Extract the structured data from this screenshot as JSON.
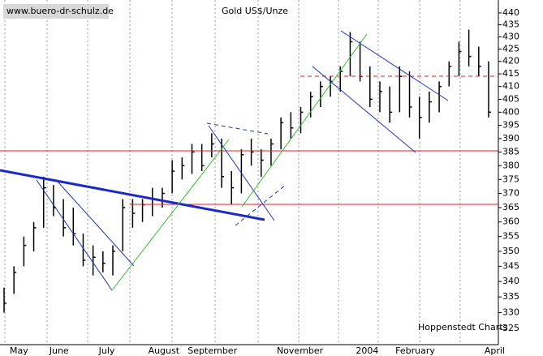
{
  "chart_data": {
    "type": "hlc",
    "title": "Gold US$/Unze",
    "source": "www.buero-dr-schulz.de",
    "credit": "Hoppenstedt Charts",
    "log": true,
    "ylim": [
      320,
      445.5
    ],
    "yticks": [
      325,
      330,
      335,
      340,
      345,
      350,
      355,
      360,
      365,
      370,
      375,
      380,
      385,
      390,
      395,
      400,
      405,
      410,
      415,
      420,
      425,
      430,
      435,
      440
    ],
    "categories": [
      "May",
      null,
      null,
      null,
      "June",
      null,
      null,
      null,
      null,
      "July",
      null,
      null,
      null,
      null,
      "August",
      null,
      null,
      null,
      "September",
      null,
      null,
      null,
      null,
      null,
      null,
      null,
      null,
      "November",
      null,
      null,
      null,
      null,
      null,
      null,
      null,
      "2004",
      null,
      null,
      null,
      "February",
      null,
      null,
      null,
      null,
      null,
      null,
      null,
      null,
      "April",
      null
    ],
    "high": [
      338,
      345,
      355,
      360,
      376,
      373,
      368,
      365,
      356,
      352,
      350,
      352,
      368,
      368,
      368,
      372,
      372,
      382,
      383,
      388,
      388,
      392,
      390,
      378,
      386,
      390,
      386,
      390,
      398,
      400,
      402,
      408,
      412,
      414,
      418,
      432,
      428,
      418,
      412,
      410,
      418,
      416,
      406,
      408,
      412,
      420,
      428,
      433,
      426,
      420
    ],
    "low": [
      330,
      336,
      345,
      350,
      358,
      362,
      355,
      352,
      345,
      342,
      343,
      342,
      350,
      358,
      360,
      362,
      365,
      370,
      375,
      377,
      378,
      383,
      372,
      366,
      370,
      380,
      376,
      380,
      386,
      390,
      392,
      398,
      402,
      406,
      408,
      414,
      412,
      402,
      400,
      396,
      400,
      398,
      390,
      396,
      400,
      410,
      414,
      418,
      414,
      398
    ],
    "close": [
      333,
      343,
      352,
      358,
      372,
      365,
      358,
      356,
      347,
      348,
      346,
      350,
      365,
      363,
      366,
      368,
      370,
      378,
      380,
      385,
      380,
      388,
      376,
      372,
      384,
      385,
      382,
      388,
      396,
      394,
      400,
      406,
      410,
      412,
      416,
      428,
      414,
      405,
      408,
      400,
      414,
      402,
      398,
      404,
      410,
      418,
      424,
      422,
      418,
      400
    ],
    "color": "#000000"
  }
}
